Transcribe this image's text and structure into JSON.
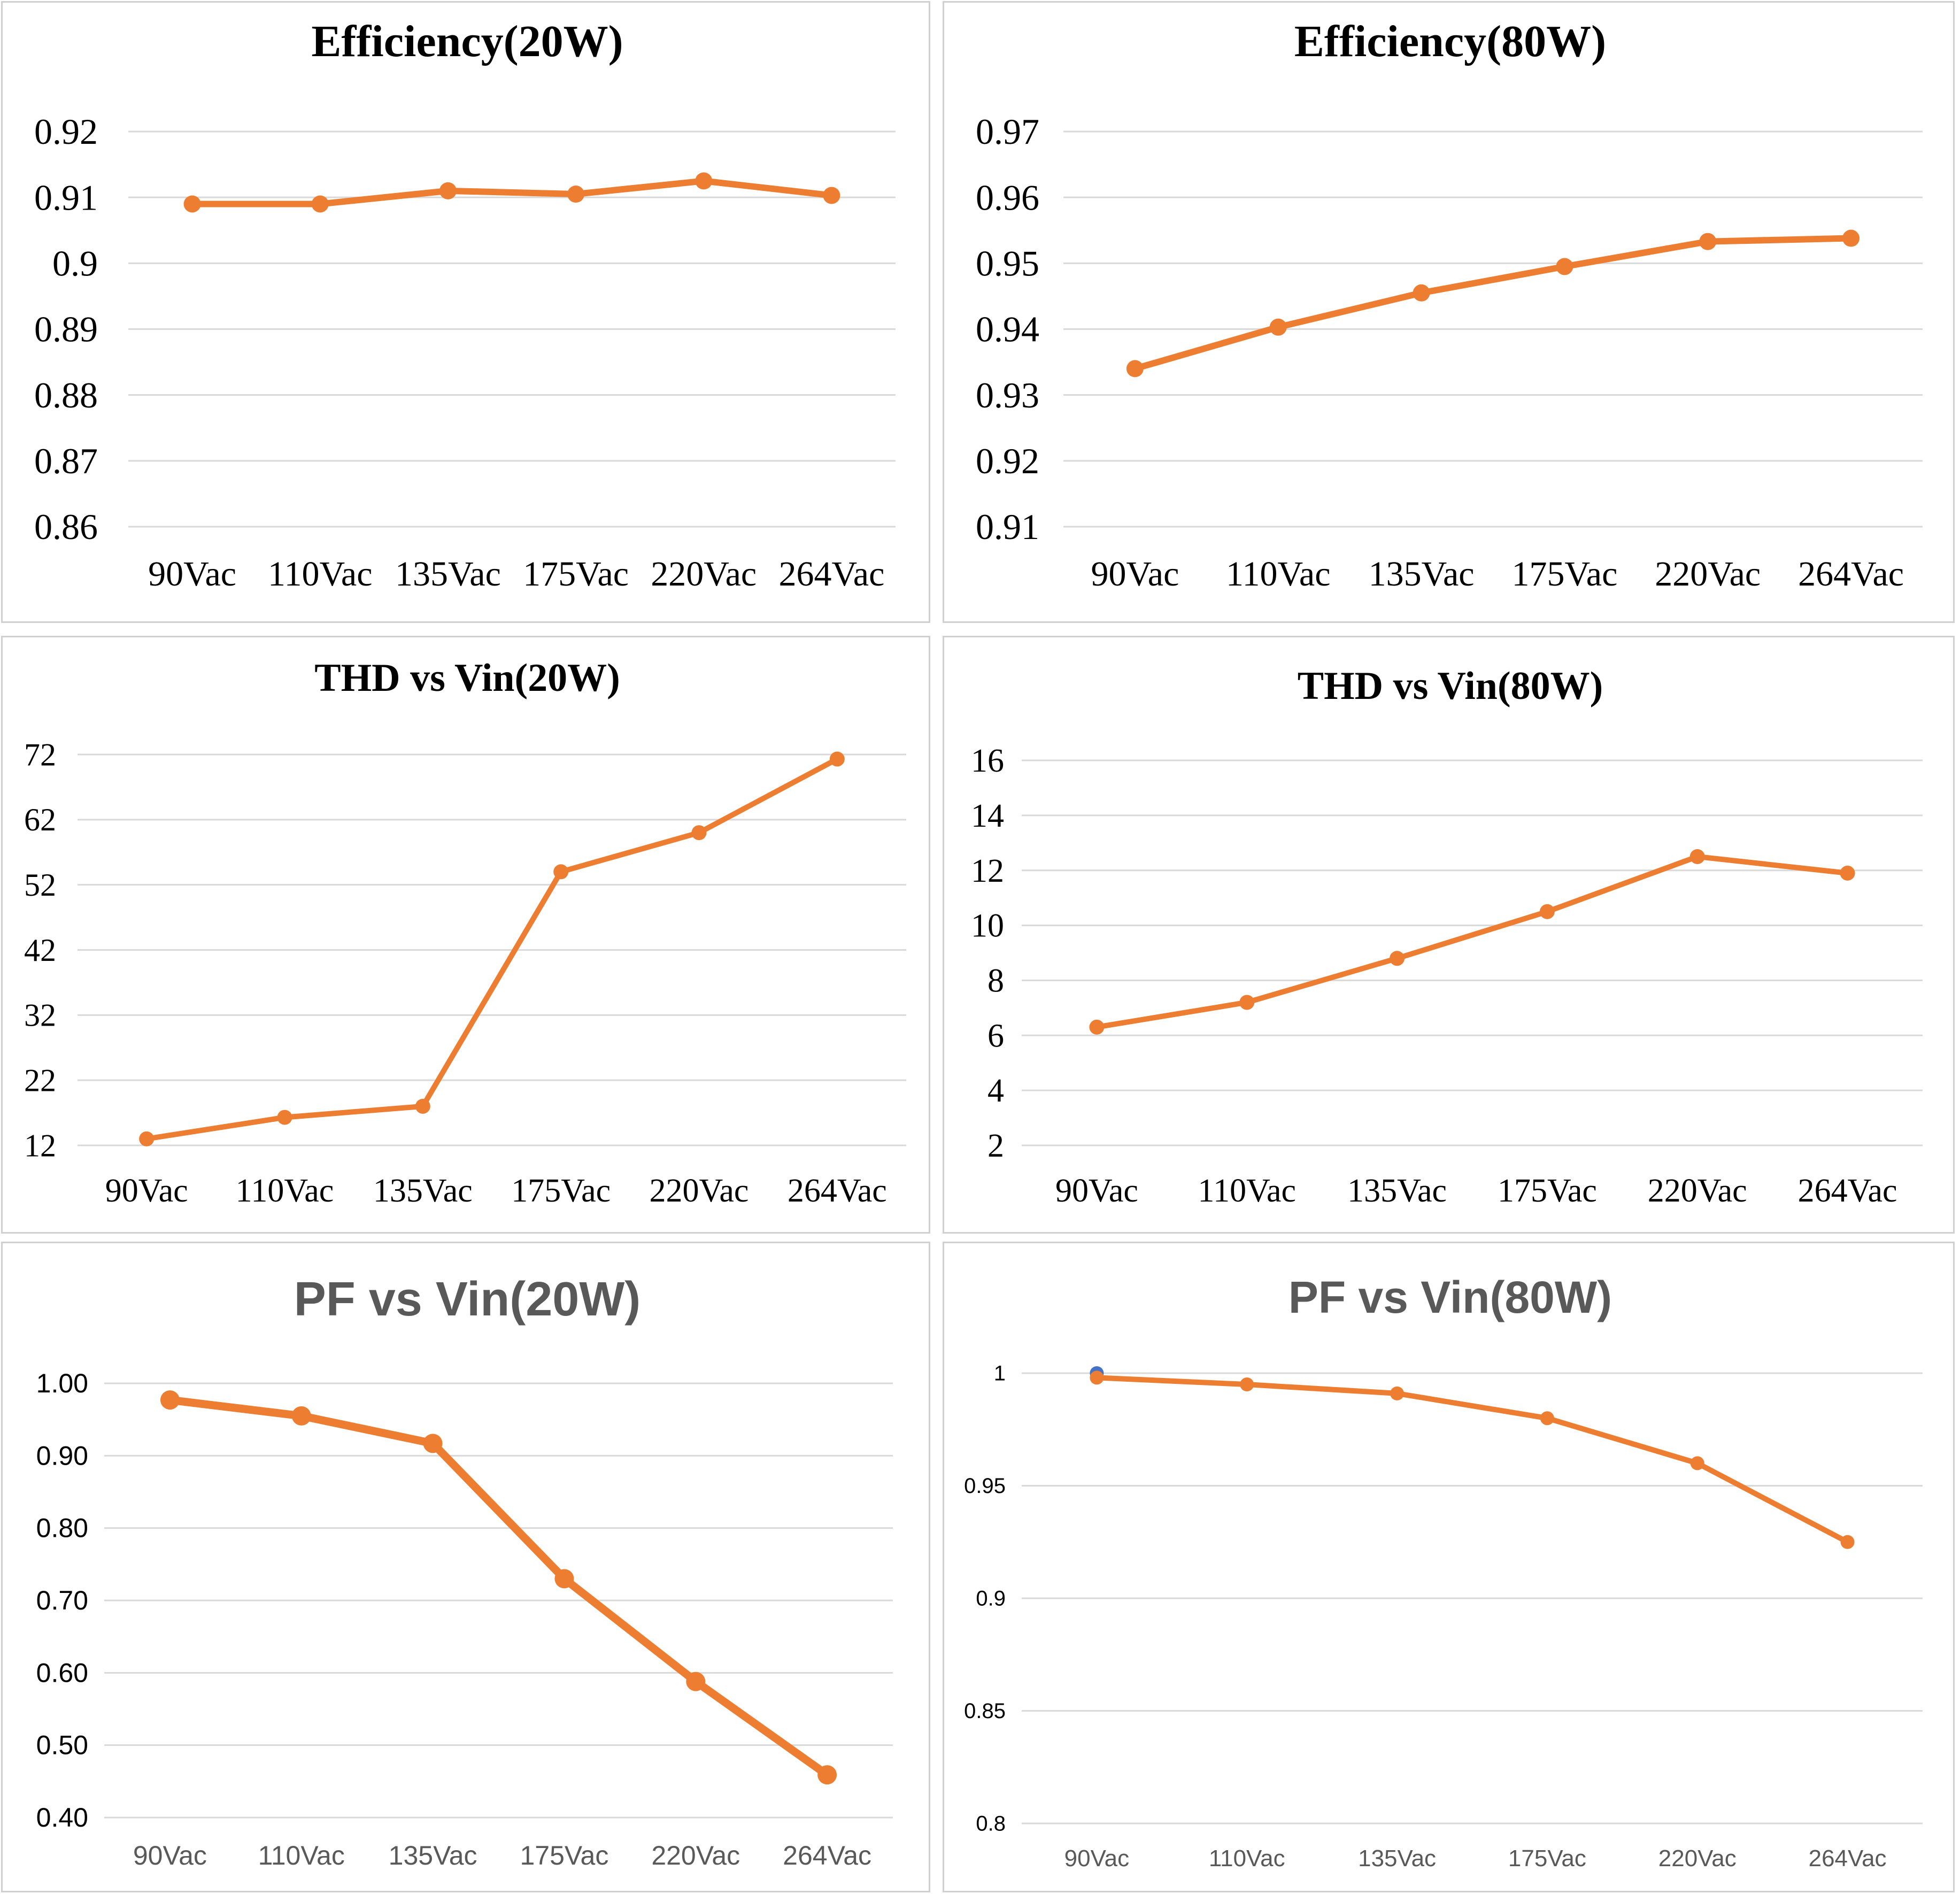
{
  "colors": {
    "series": "#ED7D31",
    "grid": "#D9D9D9",
    "text": "#000000",
    "title_gray": "#595959",
    "marker_extra": "#4472C4"
  },
  "chart_data": [
    {
      "type": "line",
      "title": "Efficiency(20W)",
      "categories": [
        "90Vac",
        "110Vac",
        "135Vac",
        "175Vac",
        "220Vac",
        "264Vac"
      ],
      "values": [
        0.909,
        0.909,
        0.911,
        0.9105,
        0.9125,
        0.9103
      ],
      "ylim": [
        0.86,
        0.92
      ],
      "yticks": [
        "0.86",
        "0.87",
        "0.88",
        "0.89",
        "0.9",
        "0.91",
        "0.92"
      ],
      "grid": true,
      "legend": "none"
    },
    {
      "type": "line",
      "title": "Efficiency(80W)",
      "categories": [
        "90Vac",
        "110Vac",
        "135Vac",
        "175Vac",
        "220Vac",
        "264Vac"
      ],
      "values": [
        0.934,
        0.9403,
        0.9455,
        0.9495,
        0.9533,
        0.9538
      ],
      "ylim": [
        0.91,
        0.97
      ],
      "yticks": [
        "0.91",
        "0.92",
        "0.93",
        "0.94",
        "0.95",
        "0.96",
        "0.97"
      ],
      "grid": true,
      "legend": "none"
    },
    {
      "type": "line",
      "title": "THD vs Vin(20W)",
      "categories": [
        "90Vac",
        "110Vac",
        "135Vac",
        "175Vac",
        "220Vac",
        "264Vac"
      ],
      "values": [
        13,
        16.3,
        18,
        54,
        60,
        71.3
      ],
      "ylim": [
        12,
        72
      ],
      "yticks": [
        "12",
        "22",
        "32",
        "42",
        "52",
        "62",
        "72"
      ],
      "grid": true,
      "legend": "none"
    },
    {
      "type": "line",
      "title": "THD vs Vin(80W)",
      "categories": [
        "90Vac",
        "110Vac",
        "135Vac",
        "175Vac",
        "220Vac",
        "264Vac"
      ],
      "values": [
        6.3,
        7.2,
        8.8,
        10.5,
        12.5,
        11.9
      ],
      "ylim": [
        2,
        16
      ],
      "yticks": [
        "2",
        "4",
        "6",
        "8",
        "10",
        "12",
        "14",
        "16"
      ],
      "grid": true,
      "legend": "none"
    },
    {
      "type": "line",
      "title": "PF vs Vin(20W)",
      "categories": [
        "90Vac",
        "110Vac",
        "135Vac",
        "175Vac",
        "220Vac",
        "264Vac"
      ],
      "values": [
        0.977,
        0.955,
        0.917,
        0.73,
        0.588,
        0.459
      ],
      "ylim": [
        0.4,
        1.0
      ],
      "yticks": [
        "0.40",
        "0.50",
        "0.60",
        "0.70",
        "0.80",
        "0.90",
        "1.00"
      ],
      "grid": true,
      "legend": "none"
    },
    {
      "type": "line",
      "title": "PF vs Vin(80W)",
      "categories": [
        "90Vac",
        "110Vac",
        "135Vac",
        "175Vac",
        "220Vac",
        "264Vac"
      ],
      "values": [
        0.998,
        0.995,
        0.991,
        0.98,
        0.96,
        0.925
      ],
      "extra_point": {
        "category": "90Vac",
        "value": 1.0
      },
      "ylim": [
        0.8,
        1.0
      ],
      "yticks": [
        "0.8",
        "0.85",
        "0.9",
        "0.95",
        "1"
      ],
      "grid": true,
      "legend": "none"
    }
  ]
}
